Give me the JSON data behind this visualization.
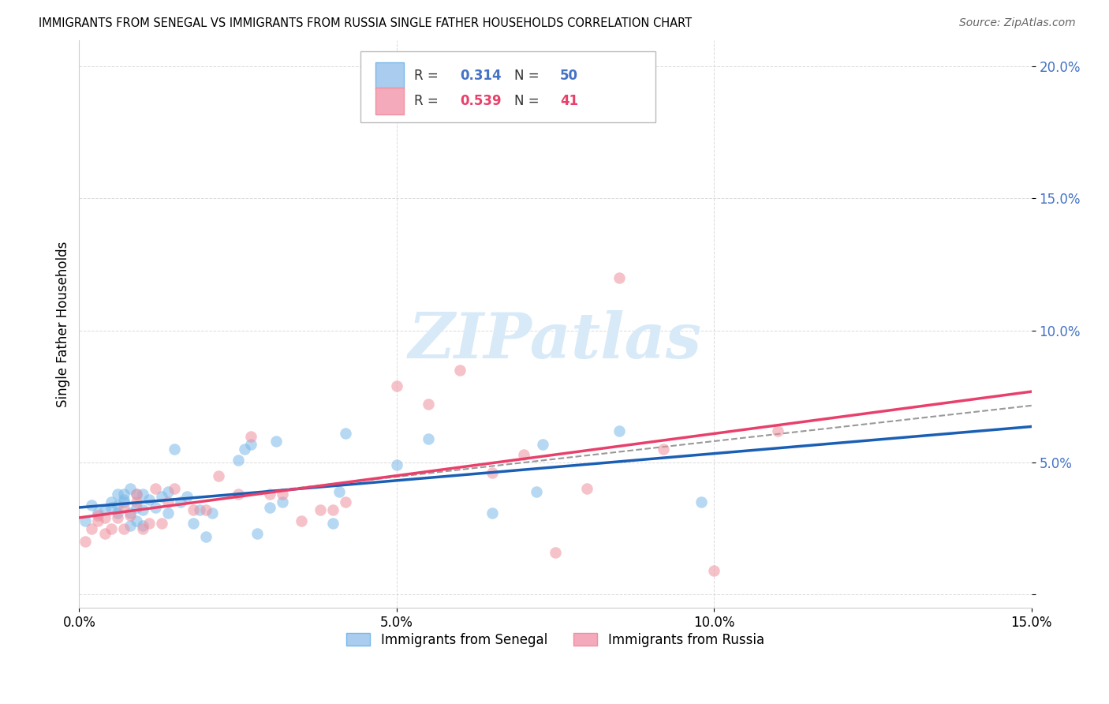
{
  "title": "IMMIGRANTS FROM SENEGAL VS IMMIGRANTS FROM RUSSIA SINGLE FATHER HOUSEHOLDS CORRELATION CHART",
  "source": "Source: ZipAtlas.com",
  "ylabel": "Single Father Households",
  "xlim": [
    0.0,
    0.15
  ],
  "ylim": [
    -0.005,
    0.21
  ],
  "xtick_vals": [
    0.0,
    0.05,
    0.1,
    0.15
  ],
  "xtick_labels": [
    "0.0%",
    "5.0%",
    "10.0%",
    "15.0%"
  ],
  "ytick_vals": [
    0.0,
    0.05,
    0.1,
    0.15,
    0.2
  ],
  "ytick_labels": [
    "",
    "5.0%",
    "10.0%",
    "15.0%",
    "20.0%"
  ],
  "R_senegal": 0.314,
  "N_senegal": 50,
  "R_russia": 0.539,
  "N_russia": 41,
  "senegal_dot_color": "#7ab8e8",
  "russia_dot_color": "#f090a0",
  "senegal_line_color": "#1a5fb4",
  "russia_line_color": "#e8406a",
  "senegal_legend_color": "#aaccee",
  "russia_legend_color": "#f4aabb",
  "r_n_color_senegal": "#4472c4",
  "r_n_color_russia": "#e8406a",
  "dashed_line_color": "#999999",
  "watermark_color": "#d8eaf8",
  "background_color": "#ffffff",
  "grid_color": "#cccccc",
  "senegal_x": [
    0.001,
    0.002,
    0.003,
    0.004,
    0.005,
    0.005,
    0.006,
    0.006,
    0.006,
    0.007,
    0.007,
    0.007,
    0.008,
    0.008,
    0.008,
    0.009,
    0.009,
    0.009,
    0.01,
    0.01,
    0.01,
    0.011,
    0.012,
    0.013,
    0.014,
    0.014,
    0.015,
    0.016,
    0.017,
    0.018,
    0.019,
    0.02,
    0.021,
    0.025,
    0.026,
    0.027,
    0.028,
    0.03,
    0.031,
    0.032,
    0.04,
    0.041,
    0.042,
    0.05,
    0.055,
    0.065,
    0.072,
    0.073,
    0.085,
    0.098
  ],
  "senegal_y": [
    0.028,
    0.034,
    0.031,
    0.032,
    0.035,
    0.033,
    0.031,
    0.034,
    0.038,
    0.035,
    0.036,
    0.038,
    0.026,
    0.031,
    0.04,
    0.028,
    0.033,
    0.038,
    0.026,
    0.032,
    0.038,
    0.036,
    0.033,
    0.037,
    0.031,
    0.039,
    0.055,
    0.035,
    0.037,
    0.027,
    0.032,
    0.022,
    0.031,
    0.051,
    0.055,
    0.057,
    0.023,
    0.033,
    0.058,
    0.035,
    0.027,
    0.039,
    0.061,
    0.049,
    0.059,
    0.031,
    0.039,
    0.057,
    0.062,
    0.035
  ],
  "russia_x": [
    0.001,
    0.002,
    0.003,
    0.003,
    0.004,
    0.004,
    0.005,
    0.006,
    0.007,
    0.007,
    0.008,
    0.009,
    0.009,
    0.01,
    0.011,
    0.012,
    0.013,
    0.014,
    0.015,
    0.018,
    0.02,
    0.022,
    0.025,
    0.027,
    0.03,
    0.032,
    0.035,
    0.038,
    0.04,
    0.042,
    0.05,
    0.055,
    0.06,
    0.065,
    0.07,
    0.075,
    0.08,
    0.085,
    0.092,
    0.1,
    0.11
  ],
  "russia_y": [
    0.02,
    0.025,
    0.028,
    0.03,
    0.023,
    0.029,
    0.025,
    0.029,
    0.025,
    0.033,
    0.03,
    0.035,
    0.038,
    0.025,
    0.027,
    0.04,
    0.027,
    0.035,
    0.04,
    0.032,
    0.032,
    0.045,
    0.038,
    0.06,
    0.038,
    0.038,
    0.028,
    0.032,
    0.032,
    0.035,
    0.079,
    0.072,
    0.085,
    0.046,
    0.053,
    0.016,
    0.04,
    0.12,
    0.055,
    0.009,
    0.062
  ]
}
